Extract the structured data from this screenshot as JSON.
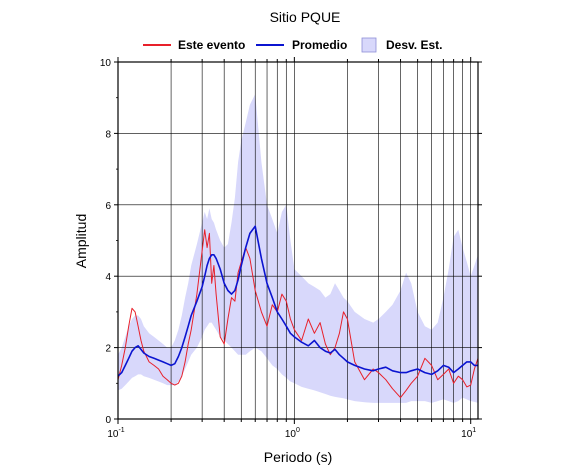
{
  "chart_data": {
    "type": "line",
    "title": "Sitio PQUE",
    "xlabel": "Periodo (s)",
    "ylabel": "Amplitud",
    "xscale": "log",
    "xlim": [
      0.1,
      11
    ],
    "ylim": [
      0,
      10
    ],
    "yticks": [
      0,
      2,
      4,
      6,
      8,
      10
    ],
    "xticks": [
      {
        "base": "10",
        "exp": "-1",
        "value": 0.1
      },
      {
        "base": "10",
        "exp": "0",
        "value": 1
      },
      {
        "base": "10",
        "exp": "1",
        "value": 10
      }
    ],
    "grid": true,
    "legend_position": "top",
    "colors": {
      "event": "#e8202a",
      "mean": "#0b14d0",
      "std": "#d8d8fb",
      "std_edge": "#8f8fd8"
    },
    "series": [
      {
        "name": "Este evento",
        "x": [
          0.1,
          0.105,
          0.11,
          0.115,
          0.12,
          0.125,
          0.13,
          0.135,
          0.14,
          0.15,
          0.16,
          0.17,
          0.18,
          0.19,
          0.2,
          0.21,
          0.22,
          0.23,
          0.24,
          0.25,
          0.26,
          0.28,
          0.3,
          0.31,
          0.32,
          0.33,
          0.34,
          0.35,
          0.36,
          0.38,
          0.4,
          0.42,
          0.44,
          0.46,
          0.48,
          0.5,
          0.53,
          0.56,
          0.6,
          0.65,
          0.7,
          0.75,
          0.8,
          0.85,
          0.9,
          0.95,
          1.0,
          1.1,
          1.2,
          1.3,
          1.4,
          1.5,
          1.6,
          1.7,
          1.8,
          1.9,
          2.0,
          2.2,
          2.5,
          2.8,
          3.0,
          3.3,
          3.6,
          4.0,
          4.3,
          4.6,
          5.0,
          5.5,
          6.0,
          6.5,
          7.0,
          7.5,
          8.0,
          8.5,
          9.0,
          9.5,
          10.0,
          10.5,
          11.0
        ],
        "values": [
          1.1,
          1.5,
          2.0,
          2.6,
          3.1,
          3.0,
          2.6,
          2.2,
          1.9,
          1.6,
          1.5,
          1.4,
          1.2,
          1.1,
          1.0,
          0.95,
          1.0,
          1.2,
          1.6,
          2.1,
          2.5,
          3.5,
          4.7,
          5.3,
          4.8,
          5.2,
          3.8,
          4.3,
          3.5,
          2.3,
          2.1,
          2.8,
          3.4,
          3.3,
          4.1,
          4.4,
          4.8,
          4.5,
          3.6,
          3.0,
          2.6,
          3.2,
          3.0,
          3.5,
          3.3,
          2.8,
          2.5,
          2.2,
          2.8,
          2.4,
          2.7,
          2.1,
          1.8,
          2.0,
          2.4,
          3.0,
          2.8,
          1.6,
          1.1,
          1.4,
          1.3,
          1.1,
          0.85,
          0.6,
          0.8,
          1.0,
          1.2,
          1.7,
          1.5,
          1.1,
          1.25,
          1.4,
          1.0,
          1.2,
          1.1,
          0.9,
          0.95,
          1.4,
          1.7
        ]
      },
      {
        "name": "Promedio",
        "x": [
          0.1,
          0.105,
          0.11,
          0.115,
          0.12,
          0.125,
          0.13,
          0.135,
          0.14,
          0.15,
          0.16,
          0.17,
          0.18,
          0.19,
          0.2,
          0.21,
          0.22,
          0.23,
          0.24,
          0.25,
          0.26,
          0.28,
          0.3,
          0.31,
          0.32,
          0.33,
          0.34,
          0.35,
          0.36,
          0.38,
          0.4,
          0.42,
          0.44,
          0.46,
          0.48,
          0.5,
          0.53,
          0.56,
          0.6,
          0.65,
          0.7,
          0.75,
          0.8,
          0.85,
          0.9,
          0.95,
          1.0,
          1.1,
          1.2,
          1.3,
          1.4,
          1.5,
          1.6,
          1.7,
          1.8,
          1.9,
          2.0,
          2.2,
          2.5,
          2.8,
          3.0,
          3.3,
          3.6,
          4.0,
          4.3,
          4.6,
          5.0,
          5.5,
          6.0,
          6.5,
          7.0,
          7.5,
          8.0,
          8.5,
          9.0,
          9.5,
          10.0,
          10.5,
          11.0
        ],
        "values": [
          1.2,
          1.3,
          1.5,
          1.7,
          1.9,
          2.0,
          2.05,
          1.95,
          1.85,
          1.75,
          1.7,
          1.65,
          1.6,
          1.55,
          1.5,
          1.55,
          1.75,
          2.0,
          2.3,
          2.6,
          2.9,
          3.3,
          3.7,
          4.0,
          4.3,
          4.5,
          4.6,
          4.6,
          4.5,
          4.2,
          3.8,
          3.6,
          3.5,
          3.6,
          3.9,
          4.3,
          4.8,
          5.2,
          5.4,
          4.5,
          3.8,
          3.4,
          3.0,
          2.8,
          2.6,
          2.4,
          2.3,
          2.15,
          2.05,
          2.2,
          2.0,
          1.9,
          1.85,
          1.95,
          1.8,
          1.7,
          1.6,
          1.5,
          1.4,
          1.35,
          1.4,
          1.45,
          1.35,
          1.3,
          1.3,
          1.35,
          1.4,
          1.3,
          1.25,
          1.35,
          1.5,
          1.45,
          1.3,
          1.4,
          1.5,
          1.6,
          1.6,
          1.5,
          1.5
        ]
      },
      {
        "name": "Desv. Est.",
        "x": [
          0.1,
          0.105,
          0.11,
          0.115,
          0.12,
          0.125,
          0.13,
          0.135,
          0.14,
          0.15,
          0.16,
          0.17,
          0.18,
          0.19,
          0.2,
          0.21,
          0.22,
          0.23,
          0.24,
          0.25,
          0.26,
          0.28,
          0.3,
          0.31,
          0.32,
          0.33,
          0.34,
          0.35,
          0.36,
          0.38,
          0.4,
          0.42,
          0.44,
          0.46,
          0.48,
          0.5,
          0.53,
          0.56,
          0.6,
          0.65,
          0.7,
          0.75,
          0.8,
          0.85,
          0.9,
          0.95,
          1.0,
          1.1,
          1.2,
          1.3,
          1.4,
          1.5,
          1.6,
          1.7,
          1.8,
          1.9,
          2.0,
          2.2,
          2.5,
          2.8,
          3.0,
          3.3,
          3.6,
          4.0,
          4.3,
          4.6,
          5.0,
          5.5,
          6.0,
          6.5,
          7.0,
          7.5,
          8.0,
          8.5,
          9.0,
          9.5,
          10.0,
          10.5,
          11.0
        ],
        "upper": [
          1.8,
          2.0,
          2.3,
          2.6,
          2.8,
          2.9,
          2.9,
          2.8,
          2.6,
          2.4,
          2.3,
          2.2,
          2.1,
          2.0,
          2.0,
          2.2,
          2.5,
          2.9,
          3.4,
          3.8,
          4.3,
          4.9,
          5.5,
          5.8,
          5.6,
          5.9,
          5.6,
          5.5,
          5.3,
          5.0,
          4.8,
          4.9,
          5.5,
          6.2,
          7.2,
          7.8,
          8.3,
          8.8,
          9.1,
          7.2,
          6.0,
          5.6,
          5.2,
          5.8,
          6.0,
          5.0,
          4.2,
          4.0,
          3.8,
          3.7,
          3.6,
          3.4,
          3.5,
          3.8,
          3.6,
          3.4,
          3.3,
          3.0,
          2.8,
          2.7,
          2.8,
          3.0,
          3.2,
          3.6,
          4.1,
          3.8,
          3.0,
          2.6,
          2.5,
          2.7,
          3.4,
          4.2,
          5.1,
          5.3,
          4.8,
          4.4,
          4.0,
          4.3,
          4.6
        ]
      }
    ],
    "std_lower": [
      0.8,
      0.85,
      0.95,
      1.05,
      1.15,
      1.2,
      1.25,
      1.25,
      1.2,
      1.15,
      1.1,
      1.05,
      1.0,
      0.95,
      0.95,
      0.95,
      1.05,
      1.2,
      1.4,
      1.6,
      1.8,
      2.0,
      2.3,
      2.5,
      2.6,
      2.7,
      2.7,
      2.6,
      2.5,
      2.3,
      2.2,
      2.1,
      2.0,
      1.9,
      1.8,
      1.8,
      1.8,
      1.9,
      2.0,
      1.9,
      1.7,
      1.5,
      1.4,
      1.25,
      1.15,
      1.05,
      1.0,
      0.9,
      0.85,
      0.8,
      0.75,
      0.7,
      0.65,
      0.62,
      0.6,
      0.58,
      0.55,
      0.5,
      0.47,
      0.45,
      0.45,
      0.45,
      0.45,
      0.45,
      0.45,
      0.5,
      0.5,
      0.5,
      0.45,
      0.5,
      0.55,
      0.5,
      0.45,
      0.5,
      0.6,
      0.55,
      0.5,
      0.48,
      0.45
    ]
  }
}
